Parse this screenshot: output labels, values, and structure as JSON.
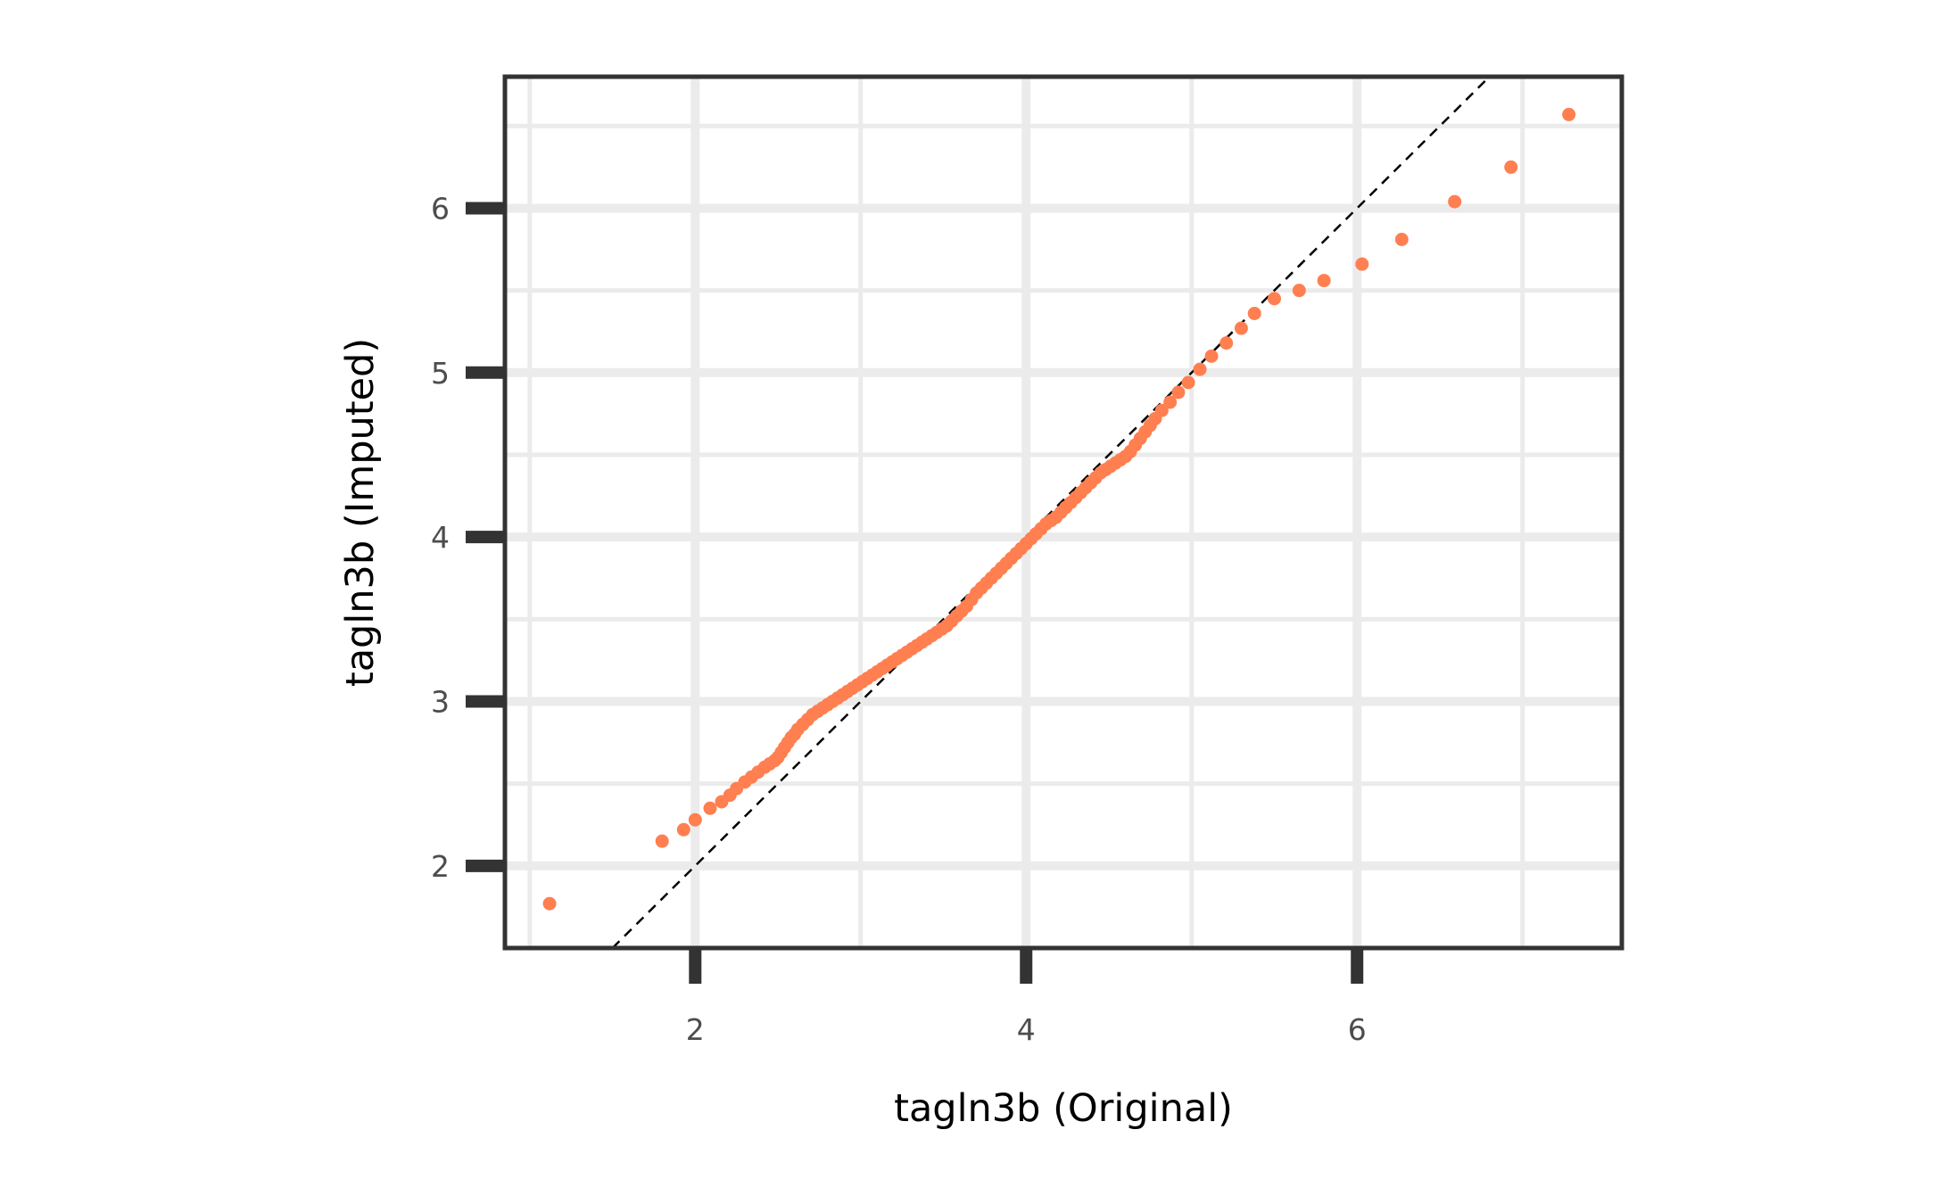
{
  "chart_data": {
    "type": "scatter",
    "title": "",
    "xlabel": "tagln3b (Original)",
    "ylabel": "tagln3b (Imputed)",
    "xlim": [
      0.85,
      7.6
    ],
    "ylim": [
      1.5,
      6.8
    ],
    "x_ticks": [
      2,
      4,
      6
    ],
    "y_ticks": [
      2,
      3,
      4,
      5,
      6
    ],
    "x_tick_labels": [
      "2",
      "4",
      "6"
    ],
    "y_tick_labels": [
      "2",
      "3",
      "4",
      "5",
      "6"
    ],
    "grid": true,
    "reference_line": {
      "slope": 1,
      "intercept": 0,
      "style": "dashed"
    },
    "colors": {
      "points": "#FF7F50",
      "panel_border": "#333333",
      "grid": "#EBEBEB",
      "reference_line": "#000000"
    },
    "series": [
      {
        "x": [
          1.12,
          1.8,
          1.93,
          2.0,
          2.09,
          2.16,
          2.21,
          2.25,
          2.3,
          2.34,
          2.38,
          2.42,
          2.45,
          2.48,
          2.5,
          2.52,
          2.54,
          2.56,
          2.58,
          2.6,
          2.62,
          2.65,
          2.68,
          2.71,
          2.74,
          2.77,
          2.8,
          2.83,
          2.86,
          2.89,
          2.92,
          2.95,
          2.98,
          3.01,
          3.04,
          3.07,
          3.1,
          3.13,
          3.16,
          3.19,
          3.22,
          3.25,
          3.28,
          3.31,
          3.34,
          3.37,
          3.4,
          3.43,
          3.46,
          3.49,
          3.52,
          3.55,
          3.58,
          3.61,
          3.64,
          3.67,
          3.7,
          3.73,
          3.76,
          3.79,
          3.82,
          3.85,
          3.88,
          3.91,
          3.94,
          3.97,
          4.0,
          4.03,
          4.06,
          4.09,
          4.12,
          4.15,
          4.18,
          4.21,
          4.24,
          4.27,
          4.3,
          4.33,
          4.36,
          4.39,
          4.42,
          4.45,
          4.48,
          4.51,
          4.54,
          4.57,
          4.6,
          4.63,
          4.66,
          4.69,
          4.72,
          4.75,
          4.78,
          4.82,
          4.87,
          4.92,
          4.98,
          5.05,
          5.12,
          5.21,
          5.3,
          5.38,
          5.5,
          5.65,
          5.8,
          6.03,
          6.27,
          6.59,
          6.93,
          7.28
        ],
        "y": [
          1.77,
          2.15,
          2.22,
          2.28,
          2.35,
          2.39,
          2.43,
          2.47,
          2.51,
          2.54,
          2.57,
          2.6,
          2.62,
          2.64,
          2.66,
          2.69,
          2.72,
          2.75,
          2.78,
          2.8,
          2.83,
          2.86,
          2.89,
          2.92,
          2.94,
          2.96,
          2.98,
          3.0,
          3.02,
          3.04,
          3.06,
          3.08,
          3.1,
          3.12,
          3.14,
          3.16,
          3.18,
          3.2,
          3.22,
          3.24,
          3.26,
          3.28,
          3.3,
          3.32,
          3.34,
          3.36,
          3.38,
          3.4,
          3.42,
          3.44,
          3.46,
          3.49,
          3.52,
          3.55,
          3.58,
          3.62,
          3.66,
          3.69,
          3.72,
          3.75,
          3.78,
          3.81,
          3.84,
          3.87,
          3.9,
          3.93,
          3.96,
          3.99,
          4.02,
          4.05,
          4.08,
          4.1,
          4.12,
          4.15,
          4.18,
          4.21,
          4.24,
          4.27,
          4.3,
          4.33,
          4.36,
          4.39,
          4.41,
          4.43,
          4.45,
          4.47,
          4.49,
          4.52,
          4.56,
          4.6,
          4.64,
          4.68,
          4.72,
          4.77,
          4.82,
          4.88,
          4.94,
          5.02,
          5.1,
          5.18,
          5.27,
          5.36,
          5.45,
          5.5,
          5.56,
          5.66,
          5.81,
          6.04,
          6.25,
          6.57
        ]
      }
    ]
  }
}
